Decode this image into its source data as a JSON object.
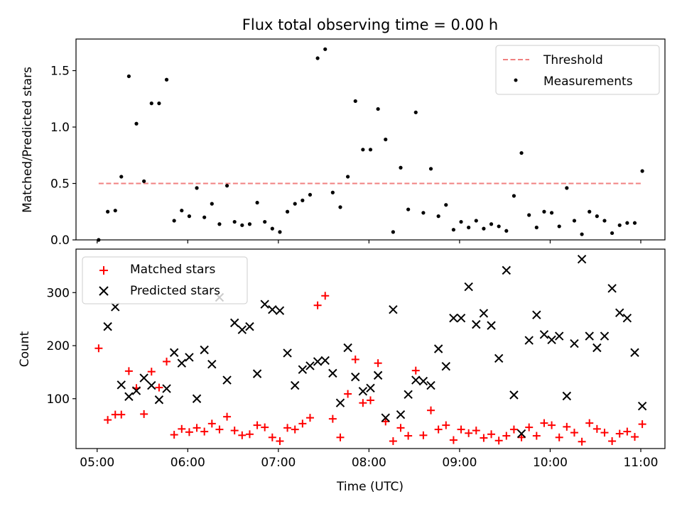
{
  "title": "Flux total observing time = 0.00 h",
  "colors": {
    "threshold": "#f08080",
    "measurement": "#000000",
    "matched": "#ff0000",
    "predicted": "#000000"
  },
  "chart_data": [
    {
      "type": "scatter",
      "ylabel": "Matched/Predicted stars",
      "ylim": [
        0,
        1.78
      ],
      "yticks": [
        "0.0",
        "0.5",
        "1.0",
        "1.5"
      ],
      "legend_position": "top-right",
      "legend": [
        {
          "name": "Threshold",
          "marker": "dashed-line"
        },
        {
          "name": "Measurements",
          "marker": "dot"
        }
      ],
      "threshold": {
        "name": "Threshold",
        "y": 0.5,
        "x_start": "05:01",
        "x_end": "11:01"
      },
      "series": [
        {
          "name": "Measurements",
          "points": [
            [
              "05:01",
              0.0
            ],
            [
              "05:07",
              0.25
            ],
            [
              "05:12",
              0.26
            ],
            [
              "05:16",
              0.56
            ],
            [
              "05:21",
              1.45
            ],
            [
              "05:26",
              1.03
            ],
            [
              "05:31",
              0.52
            ],
            [
              "05:36",
              1.21
            ],
            [
              "05:41",
              1.21
            ],
            [
              "05:46",
              1.42
            ],
            [
              "05:51",
              0.17
            ],
            [
              "05:56",
              0.26
            ],
            [
              "06:01",
              0.21
            ],
            [
              "06:06",
              0.46
            ],
            [
              "06:11",
              0.2
            ],
            [
              "06:16",
              0.32
            ],
            [
              "06:21",
              0.14
            ],
            [
              "06:26",
              0.48
            ],
            [
              "06:31",
              0.16
            ],
            [
              "06:36",
              0.13
            ],
            [
              "06:41",
              0.14
            ],
            [
              "06:46",
              0.33
            ],
            [
              "06:51",
              0.16
            ],
            [
              "06:56",
              0.1
            ],
            [
              "07:01",
              0.07
            ],
            [
              "07:06",
              0.25
            ],
            [
              "07:11",
              0.32
            ],
            [
              "07:16",
              0.35
            ],
            [
              "07:21",
              0.4
            ],
            [
              "07:26",
              1.61
            ],
            [
              "07:31",
              1.69
            ],
            [
              "07:36",
              0.42
            ],
            [
              "07:41",
              0.29
            ],
            [
              "07:46",
              0.56
            ],
            [
              "07:51",
              1.23
            ],
            [
              "07:56",
              0.8
            ],
            [
              "08:01",
              0.8
            ],
            [
              "08:06",
              1.16
            ],
            [
              "08:11",
              0.89
            ],
            [
              "08:16",
              0.07
            ],
            [
              "08:21",
              0.64
            ],
            [
              "08:26",
              0.27
            ],
            [
              "08:31",
              1.13
            ],
            [
              "08:36",
              0.24
            ],
            [
              "08:41",
              0.63
            ],
            [
              "08:46",
              0.21
            ],
            [
              "08:51",
              0.31
            ],
            [
              "08:56",
              0.09
            ],
            [
              "09:01",
              0.16
            ],
            [
              "09:06",
              0.11
            ],
            [
              "09:11",
              0.17
            ],
            [
              "09:16",
              0.1
            ],
            [
              "09:21",
              0.14
            ],
            [
              "09:26",
              0.12
            ],
            [
              "09:31",
              0.08
            ],
            [
              "09:36",
              0.39
            ],
            [
              "09:41",
              0.77
            ],
            [
              "09:46",
              0.22
            ],
            [
              "09:51",
              0.11
            ],
            [
              "09:56",
              0.25
            ],
            [
              "10:01",
              0.24
            ],
            [
              "10:06",
              0.12
            ],
            [
              "10:11",
              0.46
            ],
            [
              "10:16",
              0.17
            ],
            [
              "10:21",
              0.05
            ],
            [
              "10:26",
              0.25
            ],
            [
              "10:31",
              0.21
            ],
            [
              "10:36",
              0.17
            ],
            [
              "10:41",
              0.06
            ],
            [
              "10:46",
              0.13
            ],
            [
              "10:51",
              0.15
            ],
            [
              "10:56",
              0.15
            ],
            [
              "11:01",
              0.61
            ]
          ]
        }
      ]
    },
    {
      "type": "scatter",
      "xlabel": "Time (UTC)",
      "ylabel": "Count",
      "xlim": [
        "04:46",
        "11:16"
      ],
      "ylim": [
        6,
        382
      ],
      "xticks": [
        "05:00",
        "06:00",
        "07:00",
        "08:00",
        "09:00",
        "10:00",
        "11:00"
      ],
      "yticks": [
        "100",
        "200",
        "300"
      ],
      "legend_position": "top-left",
      "legend": [
        {
          "name": "Matched stars",
          "marker": "plus"
        },
        {
          "name": "Predicted stars",
          "marker": "x"
        }
      ],
      "series": [
        {
          "name": "Matched stars",
          "points": [
            [
              "05:01",
              195
            ],
            [
              "05:07",
              60
            ],
            [
              "05:12",
              70
            ],
            [
              "05:16",
              70
            ],
            [
              "05:21",
              152
            ],
            [
              "05:26",
              120
            ],
            [
              "05:31",
              71
            ],
            [
              "05:36",
              151
            ],
            [
              "05:41",
              121
            ],
            [
              "05:46",
              170
            ],
            [
              "05:51",
              32
            ],
            [
              "05:56",
              43
            ],
            [
              "06:01",
              37
            ],
            [
              "06:06",
              45
            ],
            [
              "06:11",
              38
            ],
            [
              "06:16",
              53
            ],
            [
              "06:21",
              42
            ],
            [
              "06:26",
              66
            ],
            [
              "06:31",
              40
            ],
            [
              "06:36",
              31
            ],
            [
              "06:41",
              33
            ],
            [
              "06:46",
              50
            ],
            [
              "06:51",
              46
            ],
            [
              "06:56",
              27
            ],
            [
              "07:01",
              20
            ],
            [
              "07:06",
              45
            ],
            [
              "07:11",
              42
            ],
            [
              "07:16",
              53
            ],
            [
              "07:21",
              64
            ],
            [
              "07:26",
              276
            ],
            [
              "07:31",
              294
            ],
            [
              "07:36",
              62
            ],
            [
              "07:41",
              27
            ],
            [
              "07:46",
              109
            ],
            [
              "07:51",
              174
            ],
            [
              "07:56",
              92
            ],
            [
              "08:01",
              97
            ],
            [
              "08:06",
              167
            ],
            [
              "08:11",
              57
            ],
            [
              "08:16",
              20
            ],
            [
              "08:21",
              45
            ],
            [
              "08:26",
              30
            ],
            [
              "08:31",
              153
            ],
            [
              "08:36",
              31
            ],
            [
              "08:41",
              78
            ],
            [
              "08:46",
              42
            ],
            [
              "08:51",
              50
            ],
            [
              "08:56",
              22
            ],
            [
              "09:01",
              42
            ],
            [
              "09:06",
              35
            ],
            [
              "09:11",
              40
            ],
            [
              "09:16",
              26
            ],
            [
              "09:21",
              33
            ],
            [
              "09:26",
              21
            ],
            [
              "09:31",
              30
            ],
            [
              "09:36",
              42
            ],
            [
              "09:41",
              27
            ],
            [
              "09:46",
              46
            ],
            [
              "09:51",
              30
            ],
            [
              "09:56",
              54
            ],
            [
              "10:01",
              50
            ],
            [
              "10:06",
              27
            ],
            [
              "10:11",
              47
            ],
            [
              "10:16",
              36
            ],
            [
              "10:21",
              19
            ],
            [
              "10:26",
              54
            ],
            [
              "10:31",
              43
            ],
            [
              "10:36",
              36
            ],
            [
              "10:41",
              20
            ],
            [
              "10:46",
              34
            ],
            [
              "10:51",
              38
            ],
            [
              "10:56",
              28
            ],
            [
              "11:01",
              52
            ]
          ]
        },
        {
          "name": "Predicted stars",
          "points": [
            [
              "05:07",
              236
            ],
            [
              "05:12",
              273
            ],
            [
              "05:16",
              126
            ],
            [
              "05:21",
              104
            ],
            [
              "05:26",
              115
            ],
            [
              "05:31",
              139
            ],
            [
              "05:36",
              125
            ],
            [
              "05:41",
              98
            ],
            [
              "05:46",
              119
            ],
            [
              "05:51",
              187
            ],
            [
              "05:56",
              167
            ],
            [
              "06:01",
              178
            ],
            [
              "06:06",
              100
            ],
            [
              "06:11",
              192
            ],
            [
              "06:16",
              165
            ],
            [
              "06:21",
              291
            ],
            [
              "06:26",
              135
            ],
            [
              "06:31",
              243
            ],
            [
              "06:36",
              230
            ],
            [
              "06:41",
              236
            ],
            [
              "06:46",
              147
            ],
            [
              "06:51",
              278
            ],
            [
              "06:56",
              268
            ],
            [
              "07:01",
              266
            ],
            [
              "07:06",
              186
            ],
            [
              "07:11",
              125
            ],
            [
              "07:16",
              155
            ],
            [
              "07:21",
              162
            ],
            [
              "07:26",
              170
            ],
            [
              "07:31",
              172
            ],
            [
              "07:36",
              148
            ],
            [
              "07:41",
              92
            ],
            [
              "07:46",
              196
            ],
            [
              "07:51",
              141
            ],
            [
              "07:56",
              114
            ],
            [
              "08:01",
              120
            ],
            [
              "08:06",
              144
            ],
            [
              "08:11",
              64
            ],
            [
              "08:16",
              268
            ],
            [
              "08:21",
              70
            ],
            [
              "08:26",
              108
            ],
            [
              "08:31",
              135
            ],
            [
              "08:36",
              133
            ],
            [
              "08:41",
              125
            ],
            [
              "08:46",
              194
            ],
            [
              "08:51",
              161
            ],
            [
              "08:56",
              252
            ],
            [
              "09:01",
              252
            ],
            [
              "09:06",
              311
            ],
            [
              "09:11",
              240
            ],
            [
              "09:16",
              261
            ],
            [
              "09:21",
              238
            ],
            [
              "09:26",
              176
            ],
            [
              "09:31",
              342
            ],
            [
              "09:36",
              107
            ],
            [
              "09:41",
              34
            ],
            [
              "09:46",
              210
            ],
            [
              "09:51",
              258
            ],
            [
              "09:56",
              221
            ],
            [
              "10:01",
              211
            ],
            [
              "10:06",
              218
            ],
            [
              "10:11",
              105
            ],
            [
              "10:16",
              204
            ],
            [
              "10:21",
              363
            ],
            [
              "10:26",
              218
            ],
            [
              "10:31",
              196
            ],
            [
              "10:36",
              218
            ],
            [
              "10:41",
              308
            ],
            [
              "10:46",
              262
            ],
            [
              "10:51",
              252
            ],
            [
              "10:56",
              187
            ],
            [
              "11:01",
              86
            ]
          ]
        }
      ]
    }
  ]
}
